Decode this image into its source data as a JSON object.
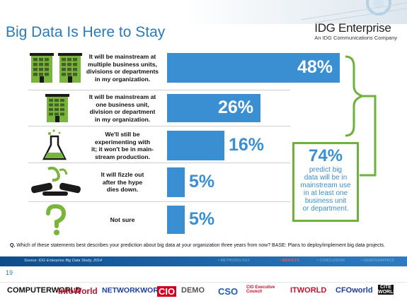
{
  "header": {
    "title": "Big Data Is Here to Stay",
    "logo_main": "IDG Enterprise",
    "logo_sub": "An IDG Communications Company"
  },
  "chart_data": {
    "type": "bar",
    "orientation": "horizontal",
    "categories": [
      "It will be mainstream at multiple business units, divisions or departments in my organization.",
      "It will be mainstream at one business unit, division or department in my organization.",
      "We'll still be experimenting with it; it won't be in mainstream production.",
      "It will fizzle out after the hype dies down.",
      "Not sure"
    ],
    "values": [
      48,
      26,
      16,
      5,
      5
    ],
    "value_labels": [
      "48%",
      "26%",
      "16%",
      "5%",
      "5%"
    ],
    "xlim": [
      0,
      48
    ],
    "bar_color": "#3a8fd2",
    "grid": false
  },
  "rows": [
    {
      "label_lines": [
        "It will be mainstream at",
        "multiple business units,",
        "divisions or departments",
        "in my organization."
      ],
      "icon": "two-buildings-icon"
    },
    {
      "label_lines": [
        "It will be mainstream at",
        "one business unit,",
        "division or department",
        "in my organization."
      ],
      "icon": "building-icon"
    },
    {
      "label_lines": [
        "We'll still be",
        "experimenting with",
        "it; it won't be in main-",
        "stream production."
      ],
      "icon": "flask-icon"
    },
    {
      "label_lines": [
        "It will fizzle out",
        "after the hype",
        "dies down."
      ],
      "icon": "broken-pipe-icon"
    },
    {
      "label_lines": [
        "Not sure"
      ],
      "icon": "question-mark-icon"
    }
  ],
  "callout": {
    "percent": "74%",
    "text_lines": [
      "predict big",
      "data will be in",
      "mainstream use",
      "in at least one",
      "business unit",
      "or department."
    ],
    "accent_color": "#6fb23a"
  },
  "question": {
    "prefix": "Q.",
    "text": "Which of these statements best describes your prediction about big data at your organization three years from now? BASE: Plans to deploy/implement big data projects."
  },
  "footer": {
    "source": "Source: IDG Enterprise Big Data Study, 2014",
    "nav": [
      "• RESULTS",
      "• CONCLUSION",
      "• DEMOGRAPHICS"
    ],
    "page_number": "19"
  },
  "brands": [
    {
      "name": "COMPUTERWORLD",
      "color": "#111111"
    },
    {
      "name": "InfoWorld",
      "color": "#c8102e"
    },
    {
      "name": "NETWORKWORLD",
      "color": "#1b3f9c"
    },
    {
      "name": "CIO",
      "color": "#d0021b"
    },
    {
      "name": "DEMO",
      "color": "#555555"
    },
    {
      "name": "CSO",
      "color": "#1a5fb4"
    },
    {
      "name": "CIO Executive Council",
      "color": "#c8102e"
    },
    {
      "name": "ITWORLD",
      "color": "#c8102e"
    },
    {
      "name": "CFOworld",
      "color": "#1b3f9c"
    },
    {
      "name": "CITE WORLD",
      "color": "#111111"
    }
  ]
}
